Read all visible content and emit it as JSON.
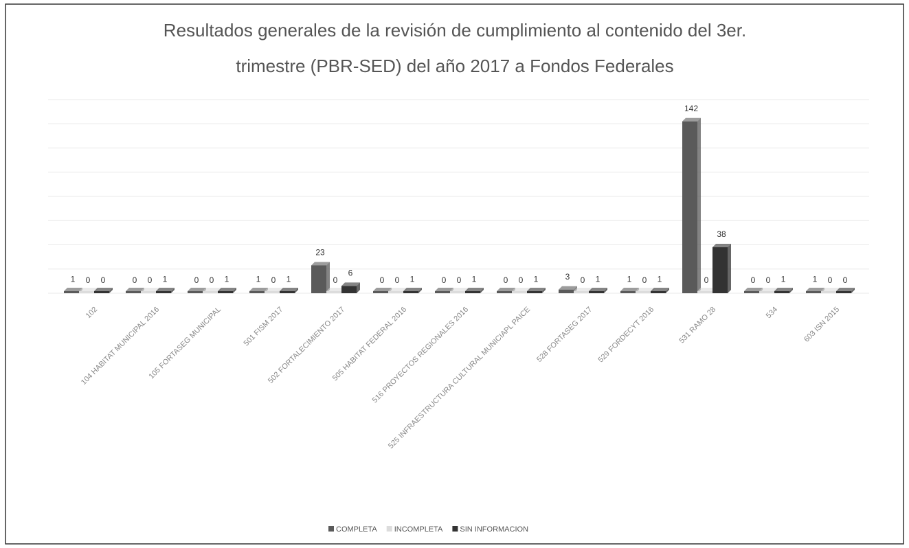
{
  "chart_data": {
    "type": "bar",
    "title": [
      "Resultados generales de la revisión de cumplimiento al contenido del 3er.",
      "trimestre (PBR-SED) del año 2017 a Fondos Federales"
    ],
    "categories": [
      "102",
      "104 HABITAT MUNICIPAL 2016",
      "105 FORTASEG MUNICIPAL",
      "501 FISM 2017",
      "502  FORTALECIMIENTO 2017",
      "505 HABITAT FEDERAL 2016",
      "516 PROYECTOS REGIONALES 2016",
      "525 INFRAESTRUCTURA CULTURAL MUNICIAPL PAICE",
      "528 FORTASEG 2017",
      "529 FORDECYT 2016",
      "531 RAMO 28",
      "534",
      "603 ISN 2015"
    ],
    "series": [
      {
        "name": "COMPLETA",
        "color": "#5a5a5a",
        "values": [
          1,
          0,
          0,
          1,
          23,
          0,
          0,
          0,
          3,
          1,
          142,
          0,
          1
        ]
      },
      {
        "name": "INCOMPLETA",
        "color": "#dcdcdc",
        "values": [
          0,
          0,
          0,
          0,
          0,
          0,
          0,
          0,
          0,
          0,
          0,
          0,
          0
        ]
      },
      {
        "name": "SIN INFORMACION",
        "color": "#333333",
        "values": [
          0,
          1,
          1,
          1,
          6,
          1,
          1,
          1,
          1,
          1,
          38,
          1,
          0
        ]
      }
    ],
    "ylim": [
      0,
      160
    ],
    "yticks": [
      0,
      20,
      40,
      60,
      80,
      100,
      120,
      140,
      160
    ],
    "grid": true
  }
}
